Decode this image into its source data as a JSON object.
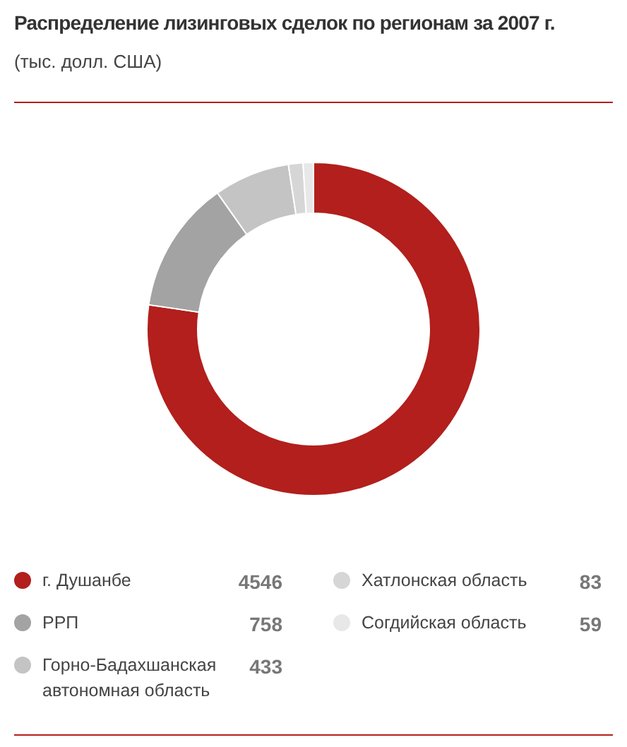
{
  "chart_data": {
    "type": "donut",
    "title": "Распределение лизинговых сделок по регионам за 2007 г.",
    "subtitle": "(тыс. долл. США)",
    "categories": [
      "г. Душанбе",
      "РРП",
      "Горно-Бадахшанская автономная область",
      "Хатлонская область",
      "Согдийская область"
    ],
    "values": [
      4546,
      758,
      433,
      83,
      59
    ],
    "colors": [
      "#b21f1c",
      "#a3a3a3",
      "#c4c4c4",
      "#d6d6d6",
      "#e8e8e8"
    ],
    "data_labels": true,
    "legend": "bottom"
  }
}
